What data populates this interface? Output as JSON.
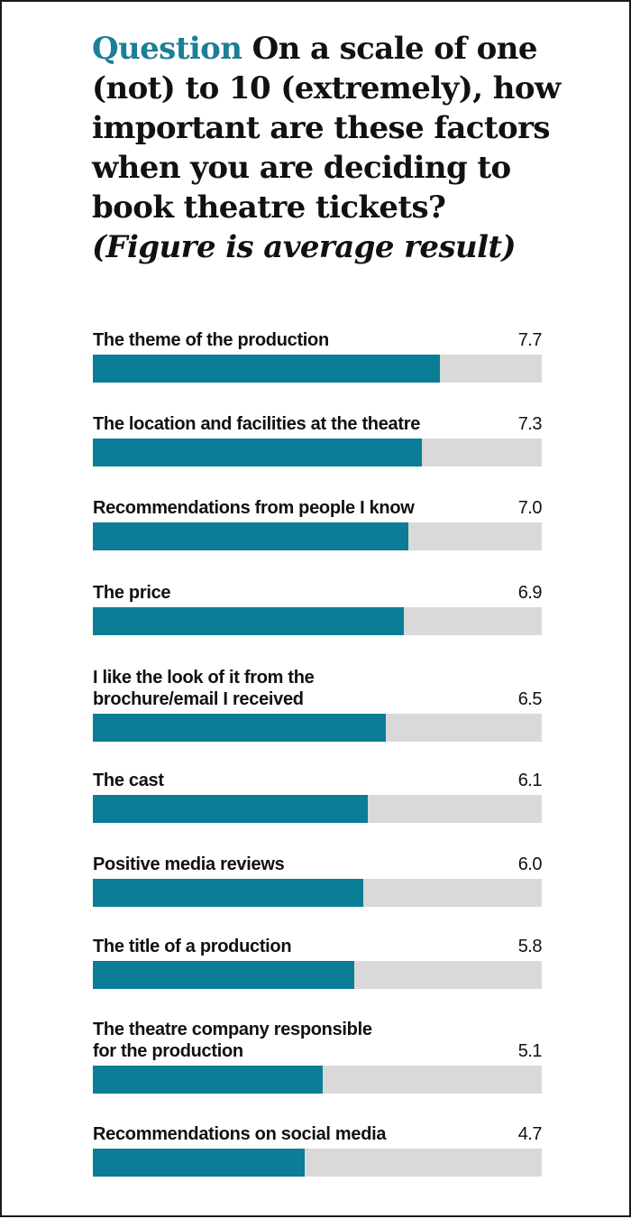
{
  "header": {
    "question_word": "Question",
    "question_text": "On a scale of one (not) to 10 (extremely), how important are these factors when you are deciding to book theatre tickets?",
    "note": "(Figure is average result)"
  },
  "colors": {
    "accent": "#1b7f96",
    "bar": "#0b7d96",
    "track": "#d9d9d9",
    "text": "#111111"
  },
  "chart_data": {
    "type": "bar",
    "orientation": "horizontal",
    "xlim": [
      0,
      10
    ],
    "categories": [
      [
        "The theme of the production"
      ],
      [
        "The location and facilities at the theatre"
      ],
      [
        "Recommendations from people I know"
      ],
      [
        "The price"
      ],
      [
        "I like the look of it from the",
        "brochure/email I received"
      ],
      [
        "The cast"
      ],
      [
        "Positive media reviews"
      ],
      [
        "The title of a production"
      ],
      [
        "The theatre company responsible",
        "for the production"
      ],
      [
        "Recommendations on social media"
      ]
    ],
    "values": [
      7.7,
      7.3,
      7.0,
      6.9,
      6.5,
      6.1,
      6.0,
      5.8,
      5.1,
      4.7
    ],
    "value_labels": [
      "7.7",
      "7.3",
      "7.0",
      "6.9",
      "6.5",
      "6.1",
      "6.0",
      "5.8",
      "5.1",
      "4.7"
    ]
  }
}
